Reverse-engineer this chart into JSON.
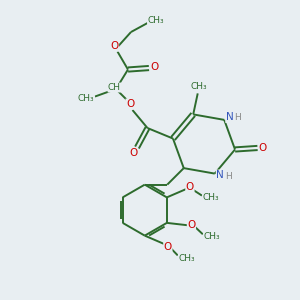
{
  "bg_color": "#e8eef2",
  "bond_color": "#2d6b2d",
  "o_color": "#cc0000",
  "n_color": "#3355bb",
  "h_color": "#888888",
  "lw": 1.4,
  "fs": 7.5,
  "xlim": [
    0,
    10
  ],
  "ylim": [
    0,
    10
  ]
}
